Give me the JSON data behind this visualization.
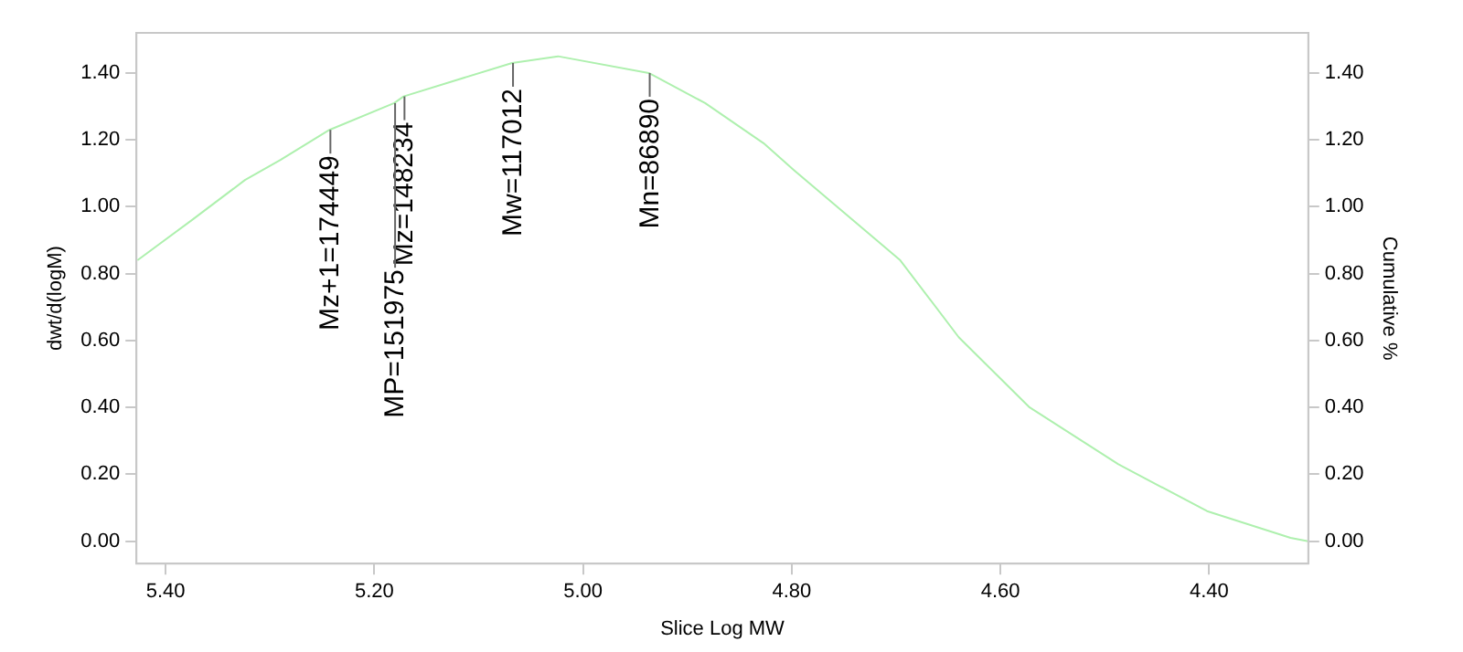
{
  "chart_data": {
    "type": "line",
    "xlabel": "Slice Log MW",
    "ylabel": "dwt/d(logM)",
    "y2label": "Cumulative %",
    "xlim": [
      5.428,
      4.305
    ],
    "xticks": [
      {
        "value": 5.4,
        "label": "5.40"
      },
      {
        "value": 5.2,
        "label": "5.20"
      },
      {
        "value": 5.0,
        "label": "5.00"
      },
      {
        "value": 4.8,
        "label": "4.80"
      },
      {
        "value": 4.6,
        "label": "4.60"
      },
      {
        "value": 4.4,
        "label": "4.40"
      }
    ],
    "ylim": [
      -0.067,
      1.52
    ],
    "yticks": [
      {
        "value": 0,
        "label": "0.00"
      },
      {
        "value": 0.2,
        "label": "0.20"
      },
      {
        "value": 0.4,
        "label": "0.40"
      },
      {
        "value": 0.6,
        "label": "0.60"
      },
      {
        "value": 0.8,
        "label": "0.80"
      },
      {
        "value": 1.0,
        "label": "1.00"
      },
      {
        "value": 1.2,
        "label": "1.20"
      },
      {
        "value": 1.4,
        "label": "1.40"
      }
    ],
    "y2lim": [
      -0.067,
      1.52
    ],
    "y2ticks": [
      {
        "value": 0,
        "label": "0.00"
      },
      {
        "value": 0.2,
        "label": "0.20"
      },
      {
        "value": 0.4,
        "label": "0.40"
      },
      {
        "value": 0.6,
        "label": "0.60"
      },
      {
        "value": 0.8,
        "label": "0.80"
      },
      {
        "value": 1.0,
        "label": "1.00"
      },
      {
        "value": 1.2,
        "label": "1.20"
      },
      {
        "value": 1.4,
        "label": "1.40"
      }
    ],
    "grid": false,
    "legend": false,
    "marker": "none",
    "line_style": "solid",
    "series": [
      {
        "color": "#aef0ae",
        "x": [
          5.427,
          5.375,
          5.324,
          5.29,
          5.243,
          5.181,
          5.172,
          5.068,
          5.024,
          4.937,
          4.883,
          4.827,
          4.798,
          4.696,
          4.64,
          4.572,
          4.487,
          4.402,
          4.322,
          4.305
        ],
        "values": [
          0.84,
          0.96,
          1.08,
          1.14,
          1.23,
          1.31,
          1.33,
          1.43,
          1.45,
          1.4,
          1.31,
          1.19,
          1.11,
          0.84,
          0.61,
          0.4,
          0.23,
          0.09,
          0.01,
          0.0
        ]
      }
    ],
    "annotations": [
      {
        "text": "Mz+1=174449",
        "x": 5.243,
        "y": 1.23
      },
      {
        "text": "Mz=148234",
        "x": 5.172,
        "y": 1.33
      },
      {
        "text": "MP=151975",
        "x": 5.181,
        "y": 1.31
      },
      {
        "text": "Mw=117012",
        "x": 5.068,
        "y": 1.43
      },
      {
        "text": "Mn=86890",
        "x": 4.937,
        "y": 1.4
      }
    ]
  }
}
